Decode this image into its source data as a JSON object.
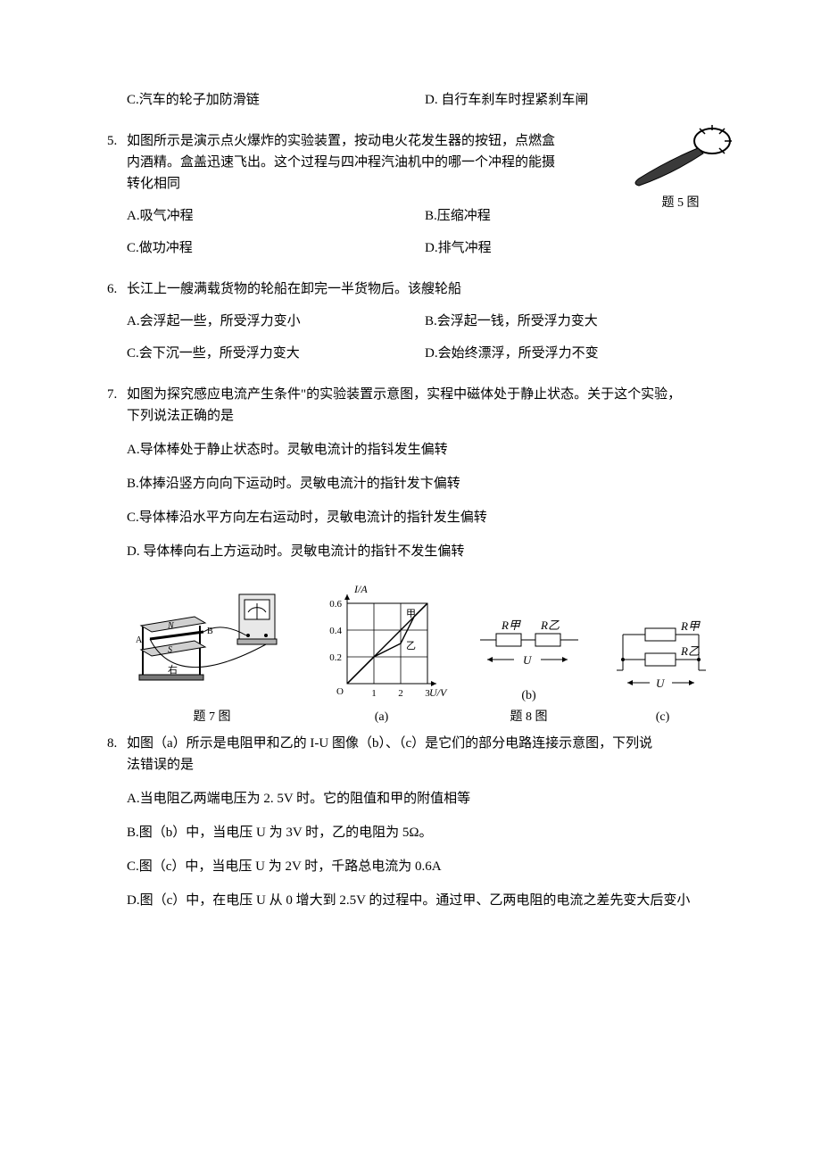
{
  "q4": {
    "optC": "C.汽车的轮子加防滑链",
    "optD": "D. 自行车刹车时捏紧刹车闸"
  },
  "q5": {
    "num": "5.",
    "stem1": "如图所示是演示点火爆炸的实验装置，按动电火花发生器的按钮，点燃盒",
    "stem2": "内酒精。盒盖迅速飞出。这个过程与四冲程汽油机中的哪一个冲程的能摄",
    "stem3": "转化相同",
    "optA": "A.吸气冲程",
    "optB": "B.压缩冲程",
    "optC": "C.做功冲程",
    "optD": "D.排气冲程",
    "fig_caption": "题 5 图",
    "fig": {
      "body_fill": "#3a3a3a",
      "head_stroke": "#000",
      "bg": "#fff"
    }
  },
  "q6": {
    "num": "6.",
    "stem": "长江上一艘满载货物的轮船在卸完一半货物后。该艘轮船",
    "optA": "A.会浮起一些，所受浮力变小",
    "optB": "B.会浮起一钱，所受浮力变大",
    "optC": "C.会下沉一些，所受浮力变大",
    "optD": "D.会始终漂浮，所受浮力不变"
  },
  "q7": {
    "num": "7.",
    "stem1": "如图为探究感应电流产生条件\"的实验装置示意图，实程中磁体处于静止状态。关于这个实验，",
    "stem2": "下列说法正确的是",
    "optA": "A.导体棒处于静止状态时。灵敏电流计的指钭发生偏转",
    "optB": "B.体捧沿竖方向向下运动时。灵敏电流汁的指针发卞偏转",
    "optC": "C.导体棒沿水平方向左右运动时，灵敏电流计的指针发生偏转",
    "optD": "D. 导体棒向右上方运动时。灵敏电流计的指针不发生偏转",
    "fig_caption": "题 7 图"
  },
  "fig_chart": {
    "type": "line",
    "y_label": "I/A",
    "x_label": "U/V",
    "x_ticks": [
      "O",
      "1",
      "2",
      "3"
    ],
    "y_ticks": [
      "0.2",
      "0.4",
      "0.6"
    ],
    "xlim": [
      0,
      3
    ],
    "ylim": [
      0,
      0.6
    ],
    "series_jia_label": "甲",
    "series_yi_label": "乙",
    "series_jia": [
      [
        0,
        0
      ],
      [
        3,
        0.6
      ]
    ],
    "series_yi": [
      [
        0,
        0
      ],
      [
        1,
        0.2
      ],
      [
        2,
        0.3
      ],
      [
        2.5,
        0.5
      ],
      [
        3,
        0.6
      ]
    ],
    "axis_color": "#000",
    "grid_color": "#000",
    "line_color": "#000",
    "bg": "#fff",
    "sub_caption_a": "(a)"
  },
  "fig_circ_b": {
    "R1": "R甲",
    "R2": "R乙",
    "U": "U",
    "sub_caption": "(b)"
  },
  "fig_circ_c": {
    "R1": "R甲",
    "R2": "R乙",
    "U": "U",
    "sub_caption": "(c)"
  },
  "fig8_caption": "题 8 图",
  "q8": {
    "num": "8.",
    "stem1": "如图（a）所示是电阻甲和乙的 I-U 图像（b）、（c）是它们的部分电路连接示意图，下列说",
    "stem2": "法错误的是",
    "optA": "A.当电阻乙两端电压为 2. 5V 时。它的阻值和甲的附值相等",
    "optB": "B.图（b）中，当电压 U 为 3V 时，乙的电阻为 5Ω。",
    "optC": "C.图（c）中，当电压 U 为 2V 时，千路总电流为 0.6A",
    "optD": "D.图（c）中，在电压 U 从 0 增大到 2.5V 的过程中。通过甲、乙两电阻的电流之差先变大后变小"
  }
}
